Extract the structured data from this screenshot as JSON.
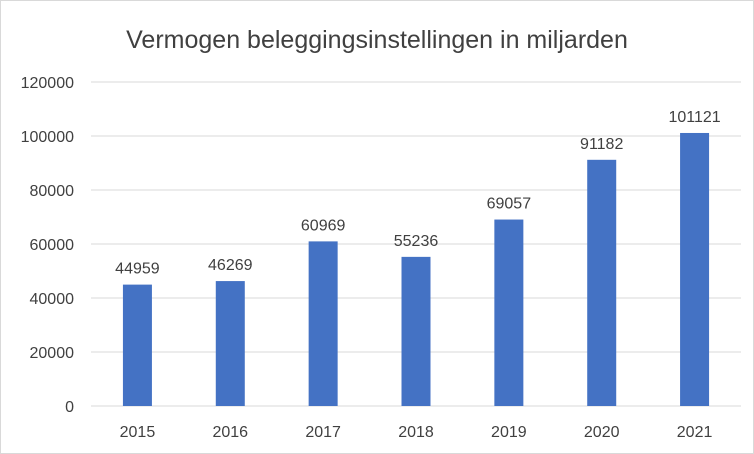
{
  "chart_data": {
    "type": "bar",
    "title": "Vermogen beleggingsinstellingen in miljarden",
    "categories": [
      "2015",
      "2016",
      "2017",
      "2018",
      "2019",
      "2020",
      "2021"
    ],
    "values": [
      44959,
      46269,
      60969,
      55236,
      69057,
      91182,
      101121
    ],
    "ylim": [
      0,
      120000
    ],
    "yticks": [
      "0",
      "20000",
      "40000",
      "60000",
      "80000",
      "100000",
      "120000"
    ],
    "grid": true,
    "legend": "none",
    "bar_color": "#4472C4"
  }
}
